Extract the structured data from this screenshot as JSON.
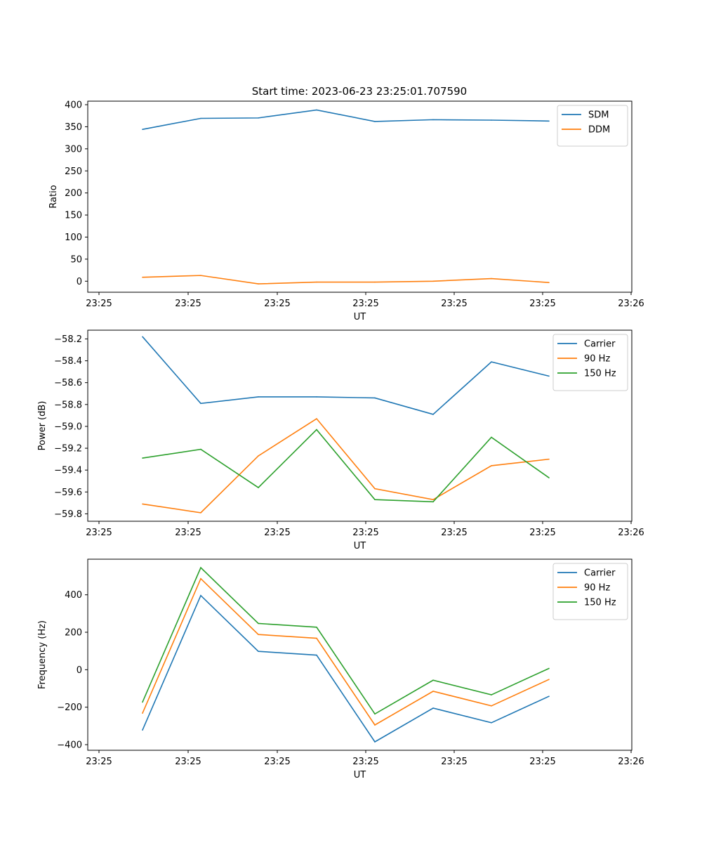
{
  "figure": {
    "title": "Start time: 2023-06-23 23:25:01.707590"
  },
  "chart_data": [
    {
      "type": "line",
      "title": "Start time: 2023-06-23 23:25:01.707590",
      "xlabel": "UT",
      "ylabel": "Ratio",
      "x_tick_labels": [
        "23:25",
        "23:25",
        "23:25",
        "23:25",
        "23:25",
        "23:25",
        "23:25"
      ],
      "x_tick_labels_last": "23:26",
      "y_ticks": [
        0,
        50,
        100,
        150,
        200,
        250,
        300,
        350,
        400
      ],
      "y_tick_labels": [
        "0",
        "50",
        "100",
        "150",
        "200",
        "250",
        "300",
        "350",
        "400"
      ],
      "ylim": [
        -25,
        408
      ],
      "x": [
        1,
        2,
        3,
        4,
        5,
        6,
        7,
        8
      ],
      "series": [
        {
          "name": "SDM",
          "color": "#1f77b4",
          "values": [
            344,
            369,
            370,
            388,
            362,
            366,
            365,
            363
          ]
        },
        {
          "name": "DDM",
          "color": "#ff7f0e",
          "values": [
            9,
            13,
            -6,
            -2,
            -2,
            0,
            6,
            -3
          ]
        }
      ],
      "legend": "top-right",
      "grid": false
    },
    {
      "type": "line",
      "title": "",
      "xlabel": "UT",
      "ylabel": "Power (dB)",
      "x_tick_labels": [
        "23:25",
        "23:25",
        "23:25",
        "23:25",
        "23:25",
        "23:25",
        "23:25"
      ],
      "x_tick_labels_last": "23:26",
      "y_ticks": [
        -59.8,
        -59.6,
        -59.4,
        -59.2,
        -59.0,
        -58.8,
        -58.6,
        -58.4,
        -58.2
      ],
      "y_tick_labels": [
        "−59.8",
        "−59.6",
        "−59.4",
        "−59.2",
        "−59.0",
        "−58.8",
        "−58.6",
        "−58.4",
        "−58.2"
      ],
      "ylim": [
        -59.868,
        -58.12
      ],
      "x": [
        1,
        2,
        3,
        4,
        5,
        6,
        7,
        8
      ],
      "series": [
        {
          "name": "Carrier",
          "color": "#1f77b4",
          "values": [
            -58.18,
            -58.79,
            -58.73,
            -58.73,
            -58.74,
            -58.89,
            -58.41,
            -58.54
          ]
        },
        {
          "name": "90 Hz",
          "color": "#ff7f0e",
          "values": [
            -59.71,
            -59.79,
            -59.27,
            -58.93,
            -59.57,
            -59.67,
            -59.36,
            -59.3
          ]
        },
        {
          "name": "150 Hz",
          "color": "#2ca02c",
          "values": [
            -59.29,
            -59.21,
            -59.56,
            -59.03,
            -59.67,
            -59.69,
            -59.1,
            -59.47
          ]
        }
      ],
      "legend": "top-right",
      "grid": false
    },
    {
      "type": "line",
      "title": "",
      "xlabel": "UT",
      "ylabel": "Frequency (Hz)",
      "x_tick_labels": [
        "23:25",
        "23:25",
        "23:25",
        "23:25",
        "23:25",
        "23:25",
        "23:25"
      ],
      "x_tick_labels_last": "23:26",
      "y_ticks": [
        -400,
        -200,
        0,
        200,
        400
      ],
      "y_tick_labels": [
        "−400",
        "−200",
        "0",
        "200",
        "400"
      ],
      "ylim": [
        -430,
        590
      ],
      "x": [
        1,
        2,
        3,
        4,
        5,
        6,
        7,
        8
      ],
      "series": [
        {
          "name": "Carrier",
          "color": "#1f77b4",
          "values": [
            -322,
            396,
            98,
            78,
            -385,
            -205,
            -283,
            -142
          ]
        },
        {
          "name": "90 Hz",
          "color": "#ff7f0e",
          "values": [
            -232,
            486,
            188,
            168,
            -295,
            -115,
            -193,
            -52
          ]
        },
        {
          "name": "150 Hz",
          "color": "#2ca02c",
          "values": [
            -173,
            545,
            247,
            227,
            -236,
            -56,
            -134,
            7
          ]
        }
      ],
      "legend": "top-right",
      "grid": false
    }
  ]
}
